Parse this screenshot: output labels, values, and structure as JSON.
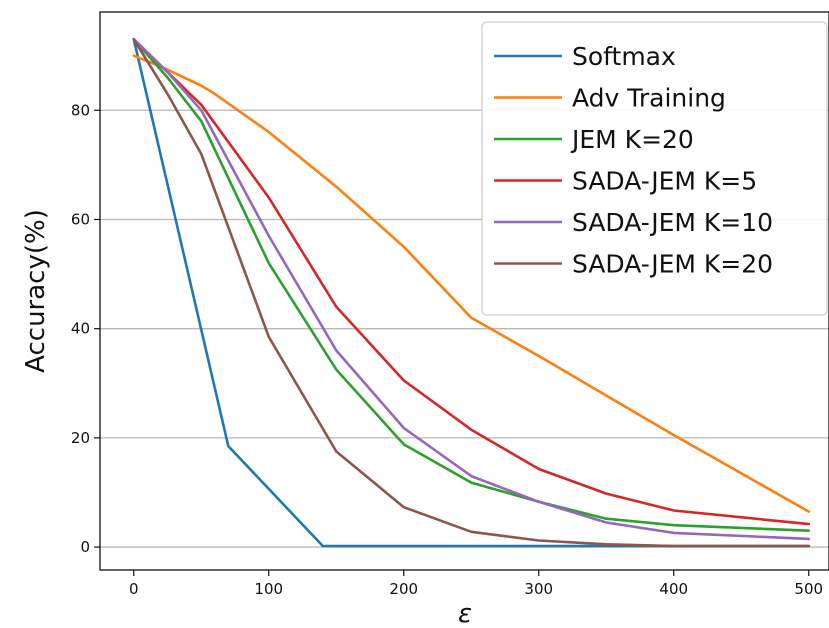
{
  "chart_data": {
    "type": "line",
    "xlabel": "ε",
    "ylabel": "Accuracy(%)",
    "xlim": [
      -25,
      515
    ],
    "ylim": [
      -4.2,
      98
    ],
    "x_ticks": [
      0,
      100,
      200,
      300,
      400,
      500
    ],
    "y_ticks": [
      0,
      20,
      40,
      60,
      80
    ],
    "grid": "horizontal",
    "legend_position": "top-right",
    "series": [
      {
        "name": "Softmax",
        "color": "#1f77b4",
        "x": [
          0,
          70,
          140,
          200,
          250,
          300,
          350,
          400,
          500
        ],
        "y": [
          93,
          18.5,
          0.2,
          0.2,
          0.2,
          0.2,
          0.2,
          0.2,
          0.2
        ]
      },
      {
        "name": "Adv Training",
        "color": "#ff7f0e",
        "x": [
          0,
          20,
          50,
          60,
          100,
          150,
          200,
          250,
          300,
          400,
          500
        ],
        "y": [
          90,
          88,
          84.5,
          83,
          76,
          66,
          55,
          42,
          35,
          20.5,
          6.5
        ]
      },
      {
        "name": "JEM K=20",
        "color": "#2ca02c",
        "x": [
          0,
          25,
          50,
          100,
          150,
          200,
          250,
          300,
          350,
          400,
          500
        ],
        "y": [
          93,
          86,
          78,
          52,
          32.5,
          18.8,
          11.8,
          8.3,
          5.2,
          4.0,
          3.0
        ]
      },
      {
        "name": "SADA-JEM K=5",
        "color": "#d62728",
        "x": [
          0,
          25,
          50,
          100,
          150,
          200,
          250,
          300,
          350,
          400,
          500
        ],
        "y": [
          93,
          87,
          81,
          64,
          44,
          30.5,
          21.5,
          14.3,
          9.8,
          6.7,
          4.2
        ]
      },
      {
        "name": "SADA-JEM K=10",
        "color": "#9467bd",
        "x": [
          0,
          25,
          50,
          100,
          150,
          200,
          250,
          300,
          350,
          400,
          500
        ],
        "y": [
          93,
          87,
          80,
          57,
          36,
          21.8,
          13,
          8.3,
          4.5,
          2.6,
          1.5
        ]
      },
      {
        "name": "SADA-JEM K=20",
        "color": "#8c564b",
        "x": [
          0,
          25,
          50,
          100,
          150,
          200,
          250,
          300,
          350,
          400,
          500
        ],
        "y": [
          93,
          83,
          72,
          38.5,
          17.5,
          7.3,
          2.8,
          1.2,
          0.5,
          0.2,
          0.2
        ]
      }
    ]
  }
}
